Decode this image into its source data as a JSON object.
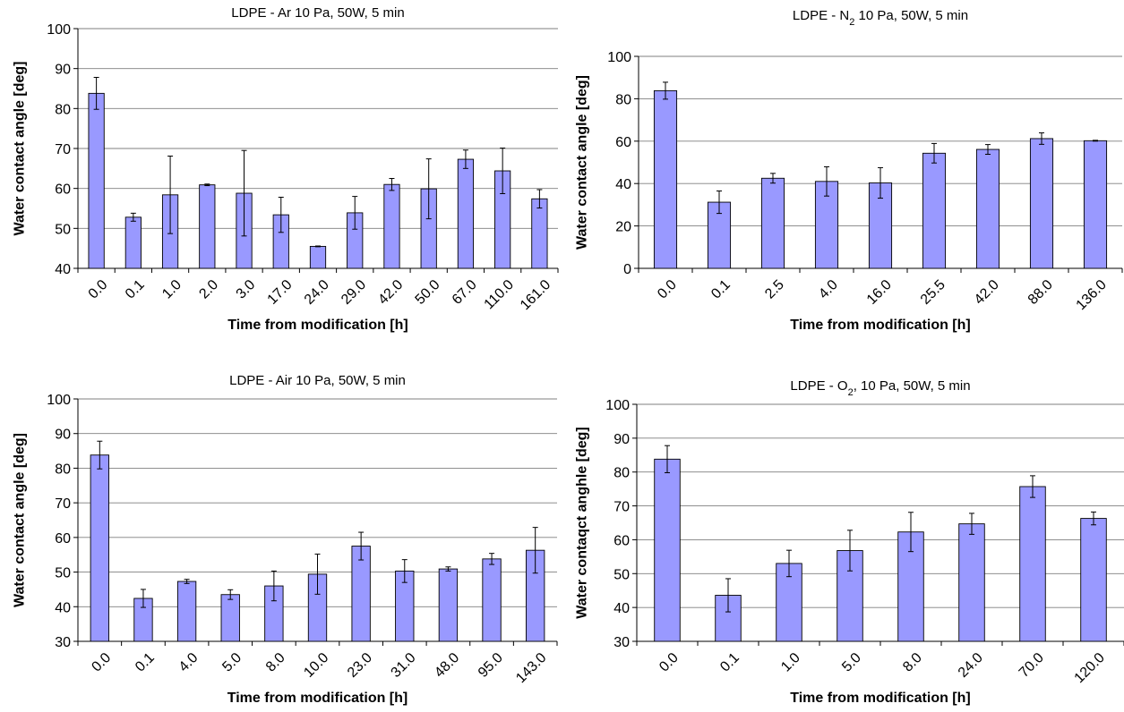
{
  "chart_data": [
    {
      "type": "bar",
      "title_parts": [
        "LDPE - Ar 10 Pa, 50W, 5 min"
      ],
      "xlabel": "Time from modification [h]",
      "ylabel": "Water contact angle [deg]",
      "ylim": [
        40,
        100
      ],
      "yticks": [
        40,
        50,
        60,
        70,
        80,
        90,
        100
      ],
      "grid": true,
      "categories": [
        "0.0",
        "0.1",
        "1.0",
        "2.0",
        "3.0",
        "17.0",
        "24.0",
        "29.0",
        "42.0",
        "50.0",
        "67.0",
        "110.0",
        "161.0"
      ],
      "values": [
        83.8,
        52.8,
        58.4,
        60.9,
        58.8,
        53.4,
        45.5,
        53.9,
        61.0,
        59.9,
        67.3,
        64.4,
        57.4
      ],
      "errors": [
        4.0,
        1.0,
        9.7,
        0.2,
        10.7,
        4.4,
        0.1,
        4.1,
        1.5,
        7.5,
        2.3,
        5.7,
        2.3
      ],
      "bar_color": "#9999ff"
    },
    {
      "type": "bar",
      "title_parts": [
        "LDPE - N",
        "2",
        " 10 Pa, 50W, 5 min"
      ],
      "xlabel": "Time from modification [h]",
      "ylabel": "Water contact angle [deg]",
      "ylim": [
        0,
        100
      ],
      "yticks": [
        0,
        20,
        40,
        60,
        80,
        100
      ],
      "grid": true,
      "categories": [
        "0.0",
        "0.1",
        "2.5",
        "4.0",
        "16.0",
        "25.5",
        "42.0",
        "88.0",
        "136.0"
      ],
      "values": [
        83.8,
        31.2,
        42.5,
        41.0,
        40.3,
        54.3,
        56.1,
        61.2,
        60.2
      ],
      "errors": [
        4.0,
        5.3,
        2.3,
        6.9,
        7.2,
        4.6,
        2.3,
        2.7,
        0.2
      ],
      "bar_color": "#9999ff"
    },
    {
      "type": "bar",
      "title_parts": [
        "LDPE - Air 10 Pa, 50W, 5 min"
      ],
      "xlabel": "Time from modification [h]",
      "ylabel": "Water contact angle [deg]",
      "ylim": [
        30,
        100
      ],
      "yticks": [
        30,
        40,
        50,
        60,
        70,
        80,
        90,
        100
      ],
      "grid": true,
      "categories": [
        "0.0",
        "0.1",
        "4.0",
        "5.0",
        "8.0",
        "10.0",
        "23.0",
        "31.0",
        "48.0",
        "95.0",
        "143.0"
      ],
      "values": [
        83.8,
        42.4,
        47.3,
        43.5,
        46.0,
        49.4,
        57.5,
        50.3,
        50.9,
        53.8,
        56.3
      ],
      "errors": [
        4.0,
        2.6,
        0.6,
        1.4,
        4.3,
        5.8,
        4.0,
        3.3,
        0.6,
        1.6,
        6.6
      ],
      "bar_color": "#9999ff"
    },
    {
      "type": "bar",
      "title_parts": [
        "LDPE - O",
        "2",
        ", 10 Pa, 50W, 5 min"
      ],
      "xlabel": "Time from modification [h]",
      "ylabel": "Water contaqct anghle [deg]",
      "ylim": [
        30,
        100
      ],
      "yticks": [
        30,
        40,
        50,
        60,
        70,
        80,
        90,
        100
      ],
      "grid": true,
      "categories": [
        "0.0",
        "0.1",
        "1.0",
        "5.0",
        "8.0",
        "24.0",
        "70.0",
        "120.0"
      ],
      "values": [
        83.8,
        43.6,
        53.0,
        56.8,
        62.3,
        64.7,
        75.7,
        66.3
      ],
      "errors": [
        4.0,
        4.9,
        3.9,
        6.0,
        5.8,
        3.1,
        3.2,
        1.9
      ],
      "bar_color": "#9999ff"
    }
  ]
}
